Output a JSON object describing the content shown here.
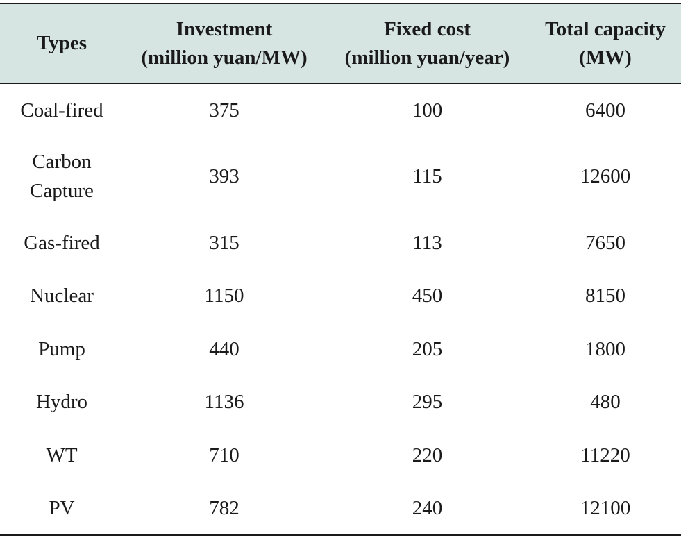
{
  "table": {
    "headers": [
      {
        "line1": "Types",
        "line2": ""
      },
      {
        "line1": "Investment",
        "line2": "(million yuan/MW)"
      },
      {
        "line1": "Fixed cost",
        "line2": "(million yuan/year)"
      },
      {
        "line1": "Total capacity",
        "line2": "(MW)"
      }
    ],
    "rows": [
      {
        "type_line1": "Coal-fired",
        "type_line2": "",
        "investment": "375",
        "fixed_cost": "100",
        "capacity": "6400"
      },
      {
        "type_line1": "Carbon",
        "type_line2": "Capture",
        "investment": "393",
        "fixed_cost": "115",
        "capacity": "12600"
      },
      {
        "type_line1": "Gas-fired",
        "type_line2": "",
        "investment": "315",
        "fixed_cost": "113",
        "capacity": "7650"
      },
      {
        "type_line1": "Nuclear",
        "type_line2": "",
        "investment": "1150",
        "fixed_cost": "450",
        "capacity": "8150"
      },
      {
        "type_line1": "Pump",
        "type_line2": "",
        "investment": "440",
        "fixed_cost": "205",
        "capacity": "1800"
      },
      {
        "type_line1": "Hydro",
        "type_line2": "",
        "investment": "1136",
        "fixed_cost": "295",
        "capacity": "480"
      },
      {
        "type_line1": "WT",
        "type_line2": "",
        "investment": "710",
        "fixed_cost": "220",
        "capacity": "11220"
      },
      {
        "type_line1": "PV",
        "type_line2": "",
        "investment": "782",
        "fixed_cost": "240",
        "capacity": "12100"
      }
    ]
  }
}
